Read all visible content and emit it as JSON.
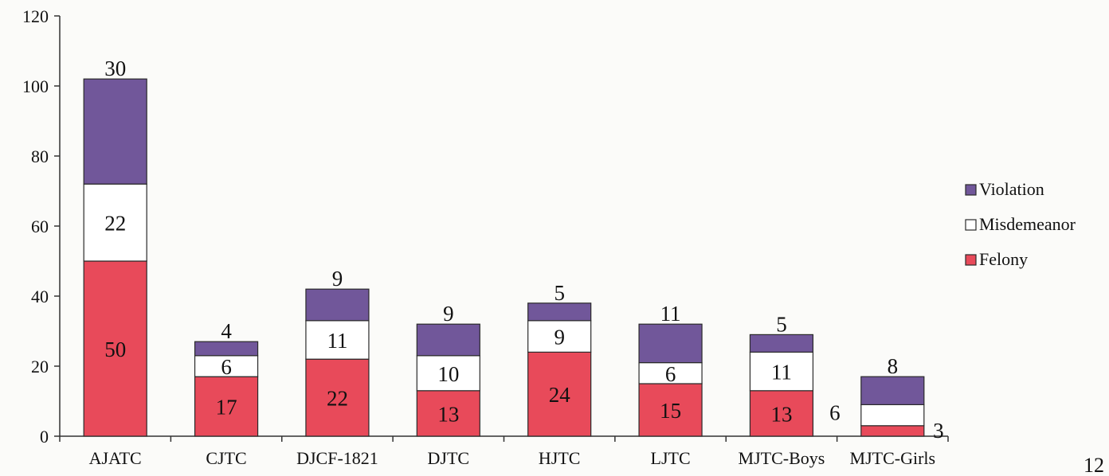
{
  "chart_data": {
    "type": "bar",
    "stacked": true,
    "title": "",
    "xlabel": "",
    "ylabel": "",
    "ylim": [
      0,
      120
    ],
    "yticks": [
      0,
      20,
      40,
      60,
      80,
      100,
      120
    ],
    "grid": false,
    "legend_position": "right",
    "categories": [
      "AJATC",
      "CJTC",
      "DJCF-1821",
      "DJTC",
      "HJTC",
      "LJTC",
      "MJTC-Boys",
      "MJTC-Girls"
    ],
    "series": [
      {
        "name": "Felony",
        "color": "#e84a5a",
        "values": [
          50,
          17,
          22,
          13,
          24,
          15,
          13,
          3
        ]
      },
      {
        "name": "Misdemeanor",
        "color": "#ffffff",
        "values": [
          22,
          6,
          11,
          10,
          9,
          6,
          11,
          6
        ]
      },
      {
        "name": "Violation",
        "color": "#71579a",
        "values": [
          30,
          4,
          9,
          9,
          5,
          11,
          5,
          8
        ]
      }
    ],
    "legend_order": [
      "Violation",
      "Misdemeanor",
      "Felony"
    ]
  },
  "page_number": "12"
}
